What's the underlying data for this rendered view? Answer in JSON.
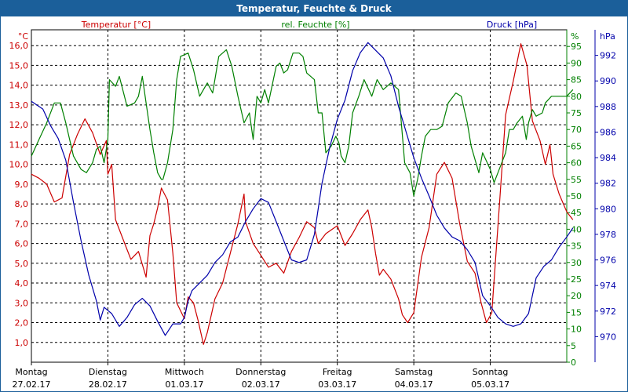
{
  "window": {
    "title": "Temperatur, Feuchte & Druck"
  },
  "colors": {
    "temperature": "#cc0000",
    "humidity": "#008000",
    "pressure": "#0000aa",
    "titlebar": "#1b5f9a"
  },
  "chart_data": {
    "type": "line",
    "title": "Temperatur, Feuchte & Druck",
    "grid": true,
    "x_ticks": [
      {
        "day": "Montag",
        "date": "27.02.17"
      },
      {
        "day": "Dienstag",
        "date": "28.02.17"
      },
      {
        "day": "Mittwoch",
        "date": "01.03.17"
      },
      {
        "day": "Donnerstag",
        "date": "02.03.17"
      },
      {
        "day": "Freitag",
        "date": "03.03.17"
      },
      {
        "day": "Samstag",
        "date": "04.03.17"
      },
      {
        "day": "Sonntag",
        "date": "05.03.17"
      }
    ],
    "xlim": [
      0,
      7
    ],
    "axes": {
      "temperature": {
        "unit": "°C",
        "ylim": [
          0,
          16.8
        ],
        "ticks": [
          "1,0",
          "2,0",
          "3,0",
          "4,0",
          "5,0",
          "6,0",
          "7,0",
          "8,0",
          "9,0",
          "10,0",
          "11,0",
          "12,0",
          "13,0",
          "14,0",
          "15,0",
          "16,0"
        ]
      },
      "humidity": {
        "unit": "%",
        "ylim": [
          0,
          100
        ],
        "ticks": [
          "0",
          "5",
          "10",
          "15",
          "20",
          "25",
          "30",
          "35",
          "40",
          "45",
          "50",
          "55",
          "60",
          "65",
          "70",
          "75",
          "80",
          "85",
          "90",
          "95"
        ]
      },
      "pressure": {
        "unit": "hPa",
        "ylim": [
          968,
          994
        ],
        "ticks": [
          "970",
          "972",
          "974",
          "976",
          "978",
          "980",
          "982",
          "984",
          "986",
          "988",
          "990",
          "992"
        ]
      }
    },
    "series": [
      {
        "name": "Temperatur [°C]",
        "axis": "temperature",
        "points": [
          [
            0,
            9.5
          ],
          [
            0.1,
            9.3
          ],
          [
            0.2,
            9.0
          ],
          [
            0.3,
            8.1
          ],
          [
            0.4,
            8.3
          ],
          [
            0.5,
            10.5
          ],
          [
            0.6,
            11.5
          ],
          [
            0.7,
            12.3
          ],
          [
            0.8,
            11.6
          ],
          [
            0.9,
            10.5
          ],
          [
            0.98,
            11.2
          ],
          [
            1.0,
            9.5
          ],
          [
            1.05,
            10.0
          ],
          [
            1.1,
            7.2
          ],
          [
            1.2,
            6.2
          ],
          [
            1.3,
            5.2
          ],
          [
            1.4,
            5.6
          ],
          [
            1.5,
            4.3
          ],
          [
            1.55,
            6.4
          ],
          [
            1.6,
            7.0
          ],
          [
            1.65,
            7.8
          ],
          [
            1.7,
            8.8
          ],
          [
            1.78,
            8.2
          ],
          [
            1.85,
            5.5
          ],
          [
            1.9,
            3.0
          ],
          [
            1.95,
            2.6
          ],
          [
            2.0,
            2.2
          ],
          [
            2.05,
            3.3
          ],
          [
            2.12,
            3.0
          ],
          [
            2.18,
            2.1
          ],
          [
            2.25,
            0.9
          ],
          [
            2.3,
            1.5
          ],
          [
            2.4,
            3.2
          ],
          [
            2.5,
            4.0
          ],
          [
            2.6,
            5.5
          ],
          [
            2.7,
            7.0
          ],
          [
            2.78,
            8.5
          ],
          [
            2.8,
            7.1
          ],
          [
            2.9,
            6.0
          ],
          [
            3.0,
            5.4
          ],
          [
            3.1,
            4.8
          ],
          [
            3.2,
            5.0
          ],
          [
            3.3,
            4.5
          ],
          [
            3.4,
            5.6
          ],
          [
            3.5,
            6.3
          ],
          [
            3.6,
            7.1
          ],
          [
            3.7,
            6.8
          ],
          [
            3.75,
            6.0
          ],
          [
            3.85,
            6.5
          ],
          [
            4.0,
            6.9
          ],
          [
            4.1,
            5.9
          ],
          [
            4.2,
            6.5
          ],
          [
            4.3,
            7.2
          ],
          [
            4.4,
            7.7
          ],
          [
            4.45,
            6.8
          ],
          [
            4.5,
            5.5
          ],
          [
            4.55,
            4.4
          ],
          [
            4.6,
            4.7
          ],
          [
            4.7,
            4.2
          ],
          [
            4.8,
            3.2
          ],
          [
            4.85,
            2.4
          ],
          [
            4.92,
            2.0
          ],
          [
            5.0,
            2.5
          ],
          [
            5.1,
            5.3
          ],
          [
            5.2,
            6.8
          ],
          [
            5.3,
            9.5
          ],
          [
            5.4,
            10.1
          ],
          [
            5.5,
            9.3
          ],
          [
            5.6,
            7.0
          ],
          [
            5.7,
            5.1
          ],
          [
            5.8,
            4.5
          ],
          [
            5.88,
            3.0
          ],
          [
            5.95,
            2.0
          ],
          [
            6.02,
            2.5
          ],
          [
            6.12,
            8.0
          ],
          [
            6.2,
            12.5
          ],
          [
            6.3,
            14.2
          ],
          [
            6.4,
            16.1
          ],
          [
            6.48,
            15.0
          ],
          [
            6.55,
            12.2
          ],
          [
            6.65,
            11.2
          ],
          [
            6.72,
            10.0
          ],
          [
            6.78,
            11.0
          ],
          [
            6.82,
            9.5
          ],
          [
            6.9,
            8.5
          ],
          [
            7.0,
            7.6
          ],
          [
            7.08,
            7.2
          ]
        ]
      },
      {
        "name": "rel. Feuchte [%]",
        "axis": "humidity",
        "points": [
          [
            0,
            62
          ],
          [
            0.1,
            67
          ],
          [
            0.2,
            72
          ],
          [
            0.3,
            78
          ],
          [
            0.38,
            78
          ],
          [
            0.45,
            72
          ],
          [
            0.55,
            62
          ],
          [
            0.65,
            58
          ],
          [
            0.72,
            57
          ],
          [
            0.8,
            60
          ],
          [
            0.85,
            64
          ],
          [
            0.9,
            65
          ],
          [
            0.95,
            60
          ],
          [
            1.0,
            67
          ],
          [
            1.02,
            85
          ],
          [
            1.1,
            83
          ],
          [
            1.15,
            86
          ],
          [
            1.25,
            77
          ],
          [
            1.35,
            78
          ],
          [
            1.4,
            80
          ],
          [
            1.45,
            86
          ],
          [
            1.5,
            78
          ],
          [
            1.55,
            70
          ],
          [
            1.6,
            63
          ],
          [
            1.65,
            57
          ],
          [
            1.7,
            55
          ],
          [
            1.72,
            55
          ],
          [
            1.78,
            60
          ],
          [
            1.85,
            70
          ],
          [
            1.9,
            85
          ],
          [
            1.95,
            92
          ],
          [
            2.05,
            93
          ],
          [
            2.12,
            88
          ],
          [
            2.2,
            80
          ],
          [
            2.3,
            84
          ],
          [
            2.37,
            81
          ],
          [
            2.45,
            92
          ],
          [
            2.55,
            94
          ],
          [
            2.62,
            89
          ],
          [
            2.7,
            80
          ],
          [
            2.78,
            72
          ],
          [
            2.85,
            75
          ],
          [
            2.9,
            67
          ],
          [
            2.95,
            80
          ],
          [
            3.0,
            78
          ],
          [
            3.05,
            82
          ],
          [
            3.1,
            78
          ],
          [
            3.2,
            89
          ],
          [
            3.25,
            90
          ],
          [
            3.3,
            87
          ],
          [
            3.35,
            88
          ],
          [
            3.42,
            93
          ],
          [
            3.5,
            93
          ],
          [
            3.55,
            92
          ],
          [
            3.6,
            87
          ],
          [
            3.7,
            85
          ],
          [
            3.75,
            75
          ],
          [
            3.8,
            75
          ],
          [
            3.85,
            63
          ],
          [
            3.92,
            65
          ],
          [
            3.98,
            68
          ],
          [
            4.02,
            66
          ],
          [
            4.05,
            62
          ],
          [
            4.1,
            60
          ],
          [
            4.15,
            65
          ],
          [
            4.2,
            75
          ],
          [
            4.28,
            80
          ],
          [
            4.35,
            85
          ],
          [
            4.45,
            80
          ],
          [
            4.52,
            85
          ],
          [
            4.6,
            82
          ],
          [
            4.7,
            84
          ],
          [
            4.8,
            82
          ],
          [
            4.88,
            60
          ],
          [
            4.95,
            57
          ],
          [
            5.0,
            50
          ],
          [
            5.05,
            55
          ],
          [
            5.1,
            62
          ],
          [
            5.15,
            68
          ],
          [
            5.22,
            70
          ],
          [
            5.3,
            70
          ],
          [
            5.37,
            71
          ],
          [
            5.45,
            78
          ],
          [
            5.55,
            81
          ],
          [
            5.62,
            80
          ],
          [
            5.7,
            72
          ],
          [
            5.75,
            65
          ],
          [
            5.8,
            61
          ],
          [
            5.85,
            57
          ],
          [
            5.9,
            63
          ],
          [
            6.0,
            58
          ],
          [
            6.05,
            54
          ],
          [
            6.1,
            57
          ],
          [
            6.2,
            63
          ],
          [
            6.25,
            70
          ],
          [
            6.3,
            70
          ],
          [
            6.35,
            72
          ],
          [
            6.42,
            74
          ],
          [
            6.47,
            67
          ],
          [
            6.5,
            72
          ],
          [
            6.55,
            76
          ],
          [
            6.6,
            74
          ],
          [
            6.68,
            75
          ],
          [
            6.72,
            78
          ],
          [
            6.8,
            80
          ],
          [
            7.0,
            80
          ],
          [
            7.08,
            82
          ]
        ]
      },
      {
        "name": "Druck [hPa]",
        "axis": "pressure",
        "points": [
          [
            0,
            988.4
          ],
          [
            0.15,
            987.8
          ],
          [
            0.25,
            986.5
          ],
          [
            0.35,
            985.5
          ],
          [
            0.45,
            983.8
          ],
          [
            0.55,
            980.5
          ],
          [
            0.65,
            977.5
          ],
          [
            0.75,
            974.8
          ],
          [
            0.85,
            972.8
          ],
          [
            0.9,
            971.3
          ],
          [
            0.95,
            972.3
          ],
          [
            1.05,
            971.8
          ],
          [
            1.15,
            970.8
          ],
          [
            1.25,
            971.5
          ],
          [
            1.35,
            972.5
          ],
          [
            1.45,
            973.0
          ],
          [
            1.55,
            972.4
          ],
          [
            1.65,
            971.2
          ],
          [
            1.75,
            970.1
          ],
          [
            1.85,
            971.0
          ],
          [
            1.95,
            971.0
          ],
          [
            2.0,
            971.5
          ],
          [
            2.05,
            972.8
          ],
          [
            2.1,
            973.6
          ],
          [
            2.2,
            974.2
          ],
          [
            2.3,
            974.8
          ],
          [
            2.4,
            975.8
          ],
          [
            2.5,
            976.4
          ],
          [
            2.6,
            977.4
          ],
          [
            2.7,
            977.8
          ],
          [
            2.8,
            979.0
          ],
          [
            2.9,
            980.0
          ],
          [
            3.0,
            980.8
          ],
          [
            3.1,
            980.5
          ],
          [
            3.2,
            979.0
          ],
          [
            3.3,
            977.5
          ],
          [
            3.4,
            976.0
          ],
          [
            3.5,
            975.8
          ],
          [
            3.6,
            976.0
          ],
          [
            3.7,
            978.0
          ],
          [
            3.8,
            982.0
          ],
          [
            3.9,
            984.8
          ],
          [
            4.0,
            987.0
          ],
          [
            4.1,
            988.5
          ],
          [
            4.2,
            990.8
          ],
          [
            4.3,
            992.2
          ],
          [
            4.4,
            993.0
          ],
          [
            4.5,
            992.4
          ],
          [
            4.6,
            991.8
          ],
          [
            4.7,
            990.4
          ],
          [
            4.8,
            988.0
          ],
          [
            4.9,
            986.0
          ],
          [
            5.0,
            984.0
          ],
          [
            5.1,
            982.4
          ],
          [
            5.2,
            981.0
          ],
          [
            5.3,
            979.5
          ],
          [
            5.4,
            978.5
          ],
          [
            5.5,
            977.8
          ],
          [
            5.6,
            977.5
          ],
          [
            5.7,
            976.8
          ],
          [
            5.8,
            975.8
          ],
          [
            5.9,
            973.2
          ],
          [
            6.0,
            972.4
          ],
          [
            6.1,
            971.5
          ],
          [
            6.2,
            971.0
          ],
          [
            6.3,
            970.8
          ],
          [
            6.4,
            971.0
          ],
          [
            6.5,
            971.8
          ],
          [
            6.6,
            974.6
          ],
          [
            6.7,
            975.5
          ],
          [
            6.8,
            976.0
          ],
          [
            6.9,
            977.0
          ],
          [
            7.0,
            977.8
          ],
          [
            7.08,
            978.5
          ]
        ]
      }
    ]
  }
}
